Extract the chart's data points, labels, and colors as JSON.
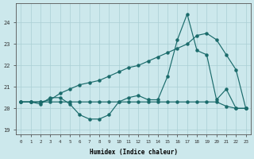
{
  "xlabel": "Humidex (Indice chaleur)",
  "bg_color": "#cce8ec",
  "line_color": "#1a6b6b",
  "grid_color": "#aacfd4",
  "xlim": [
    -0.5,
    23.5
  ],
  "ylim": [
    18.8,
    24.9
  ],
  "yticks": [
    19,
    20,
    21,
    22,
    23,
    24
  ],
  "xticks": [
    0,
    1,
    2,
    3,
    4,
    5,
    6,
    7,
    8,
    9,
    10,
    11,
    12,
    13,
    14,
    15,
    16,
    17,
    18,
    19,
    20,
    21,
    22,
    23
  ],
  "line_spike": {
    "x": [
      0,
      1,
      2,
      3,
      4,
      5,
      6,
      7,
      8,
      9,
      10,
      11,
      12,
      13,
      14,
      15,
      16,
      17,
      18,
      19,
      20,
      21,
      22,
      23
    ],
    "y": [
      20.3,
      20.3,
      20.2,
      20.5,
      20.5,
      20.2,
      19.7,
      19.5,
      19.5,
      19.7,
      20.3,
      20.5,
      20.6,
      20.4,
      20.4,
      21.5,
      23.2,
      24.4,
      22.7,
      22.5,
      20.4,
      20.9,
      20.0,
      20.0
    ]
  },
  "line_flat": {
    "x": [
      0,
      1,
      2,
      3,
      4,
      5,
      6,
      7,
      8,
      9,
      10,
      11,
      12,
      13,
      14,
      15,
      16,
      17,
      18,
      19,
      20,
      21,
      22,
      23
    ],
    "y": [
      20.3,
      20.3,
      20.3,
      20.3,
      20.3,
      20.3,
      20.3,
      20.3,
      20.3,
      20.3,
      20.3,
      20.3,
      20.3,
      20.3,
      20.3,
      20.3,
      20.3,
      20.3,
      20.3,
      20.3,
      20.3,
      20.1,
      20.0,
      20.0
    ]
  },
  "line_diag": {
    "x": [
      0,
      1,
      2,
      3,
      4,
      5,
      6,
      7,
      8,
      9,
      10,
      11,
      12,
      13,
      14,
      15,
      16,
      17,
      18,
      19,
      20,
      21,
      22,
      23
    ],
    "y": [
      20.3,
      20.3,
      20.3,
      20.4,
      20.7,
      20.9,
      21.1,
      21.2,
      21.3,
      21.5,
      21.7,
      21.9,
      22.0,
      22.2,
      22.4,
      22.6,
      22.8,
      23.0,
      23.4,
      23.5,
      23.2,
      22.5,
      21.8,
      20.0
    ]
  }
}
